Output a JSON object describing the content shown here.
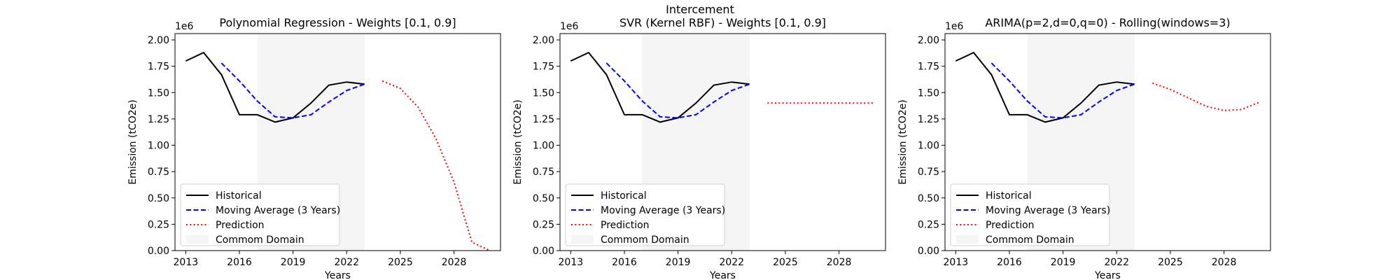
{
  "suptitle": "Intercement",
  "chart_data": [
    {
      "type": "line",
      "title": "Polynomial Regression - Weights [0.1, 0.9]",
      "xlabel": "Years",
      "ylabel": "Emission (tCO2e)",
      "offset_label": "1e6",
      "xlim": [
        2012.4,
        2030.6
      ],
      "ylim": [
        0,
        2.06
      ],
      "xticks": [
        2013,
        2016,
        2019,
        2022,
        2025,
        2028
      ],
      "xtick_labels": [
        "2013",
        "2016",
        "2019",
        "2022",
        "2025",
        "2028"
      ],
      "yticks": [
        0,
        0.25,
        0.5,
        0.75,
        1.0,
        1.25,
        1.5,
        1.75,
        2.0
      ],
      "ytick_labels": [
        "0.00",
        "0.25",
        "0.50",
        "0.75",
        "1.00",
        "1.25",
        "1.50",
        "1.75",
        "2.00"
      ],
      "common_domain": [
        2017,
        2023
      ],
      "legend_position": "lower-left",
      "series": [
        {
          "name": "Historical",
          "style": "solid",
          "color": "#000000",
          "x": [
            2013,
            2014,
            2015,
            2016,
            2017,
            2018,
            2019,
            2020,
            2021,
            2022,
            2023
          ],
          "y": [
            1.8,
            1.88,
            1.67,
            1.29,
            1.29,
            1.22,
            1.26,
            1.4,
            1.57,
            1.6,
            1.58
          ]
        },
        {
          "name": "Moving Average (3 Years)",
          "style": "dashed",
          "color": "#0000ff",
          "x": [
            2015,
            2016,
            2017,
            2018,
            2019,
            2020,
            2021,
            2022,
            2023
          ],
          "y": [
            1.78,
            1.61,
            1.42,
            1.27,
            1.26,
            1.29,
            1.41,
            1.52,
            1.58
          ]
        },
        {
          "name": "Prediction",
          "style": "dotted",
          "color": "#ff0000",
          "x": [
            2024,
            2025,
            2026,
            2027,
            2028,
            2029,
            2030
          ],
          "y": [
            1.61,
            1.54,
            1.36,
            1.06,
            0.65,
            0.08,
            0.0
          ]
        },
        {
          "name": "Commom Domain",
          "style": "band",
          "color": "#f5f5f5"
        }
      ]
    },
    {
      "type": "line",
      "title": "SVR (Kernel RBF) - Weights [0.1, 0.9]",
      "xlabel": "Years",
      "ylabel": "Emission (tCO2e)",
      "offset_label": "1e6",
      "xlim": [
        2012.4,
        2030.6
      ],
      "ylim": [
        0,
        2.06
      ],
      "xticks": [
        2013,
        2016,
        2019,
        2022,
        2025,
        2028
      ],
      "xtick_labels": [
        "2013",
        "2016",
        "2019",
        "2022",
        "2025",
        "2028"
      ],
      "yticks": [
        0,
        0.25,
        0.5,
        0.75,
        1.0,
        1.25,
        1.5,
        1.75,
        2.0
      ],
      "ytick_labels": [
        "0.00",
        "0.25",
        "0.50",
        "0.75",
        "1.00",
        "1.25",
        "1.50",
        "1.75",
        "2.00"
      ],
      "common_domain": [
        2017,
        2023
      ],
      "legend_position": "lower-left",
      "series": [
        {
          "name": "Historical",
          "style": "solid",
          "color": "#000000",
          "x": [
            2013,
            2014,
            2015,
            2016,
            2017,
            2018,
            2019,
            2020,
            2021,
            2022,
            2023
          ],
          "y": [
            1.8,
            1.88,
            1.67,
            1.29,
            1.29,
            1.22,
            1.26,
            1.4,
            1.57,
            1.6,
            1.58
          ]
        },
        {
          "name": "Moving Average (3 Years)",
          "style": "dashed",
          "color": "#0000ff",
          "x": [
            2015,
            2016,
            2017,
            2018,
            2019,
            2020,
            2021,
            2022,
            2023
          ],
          "y": [
            1.78,
            1.61,
            1.42,
            1.27,
            1.26,
            1.29,
            1.41,
            1.52,
            1.58
          ]
        },
        {
          "name": "Prediction",
          "style": "dotted",
          "color": "#ff0000",
          "x": [
            2024,
            2025,
            2026,
            2027,
            2028,
            2029,
            2030
          ],
          "y": [
            1.4,
            1.4,
            1.4,
            1.4,
            1.4,
            1.4,
            1.4
          ]
        },
        {
          "name": "Commom Domain",
          "style": "band",
          "color": "#f5f5f5"
        }
      ]
    },
    {
      "type": "line",
      "title": "ARIMA(p=2,d=0,q=0) - Rolling(windows=3)",
      "xlabel": "Years",
      "ylabel": "Emission (tCO2e)",
      "offset_label": "1e6",
      "xlim": [
        2012.4,
        2030.6
      ],
      "ylim": [
        0,
        2.06
      ],
      "xticks": [
        2013,
        2016,
        2019,
        2022,
        2025,
        2028
      ],
      "xtick_labels": [
        "2013",
        "2016",
        "2019",
        "2022",
        "2025",
        "2028"
      ],
      "yticks": [
        0,
        0.25,
        0.5,
        0.75,
        1.0,
        1.25,
        1.5,
        1.75,
        2.0
      ],
      "ytick_labels": [
        "0.00",
        "0.25",
        "0.50",
        "0.75",
        "1.00",
        "1.25",
        "1.50",
        "1.75",
        "2.00"
      ],
      "common_domain": [
        2017,
        2023
      ],
      "legend_position": "lower-left",
      "series": [
        {
          "name": "Historical",
          "style": "solid",
          "color": "#000000",
          "x": [
            2013,
            2014,
            2015,
            2016,
            2017,
            2018,
            2019,
            2020,
            2021,
            2022,
            2023
          ],
          "y": [
            1.8,
            1.88,
            1.67,
            1.29,
            1.29,
            1.22,
            1.26,
            1.4,
            1.57,
            1.6,
            1.58
          ]
        },
        {
          "name": "Moving Average (3 Years)",
          "style": "dashed",
          "color": "#0000ff",
          "x": [
            2015,
            2016,
            2017,
            2018,
            2019,
            2020,
            2021,
            2022,
            2023
          ],
          "y": [
            1.78,
            1.61,
            1.42,
            1.27,
            1.26,
            1.29,
            1.41,
            1.52,
            1.58
          ]
        },
        {
          "name": "Prediction",
          "style": "dotted",
          "color": "#ff0000",
          "x": [
            2024,
            2025,
            2026,
            2027,
            2028,
            2029,
            2030
          ],
          "y": [
            1.59,
            1.53,
            1.45,
            1.37,
            1.33,
            1.34,
            1.41
          ]
        },
        {
          "name": "Commom Domain",
          "style": "band",
          "color": "#f5f5f5"
        }
      ]
    }
  ]
}
